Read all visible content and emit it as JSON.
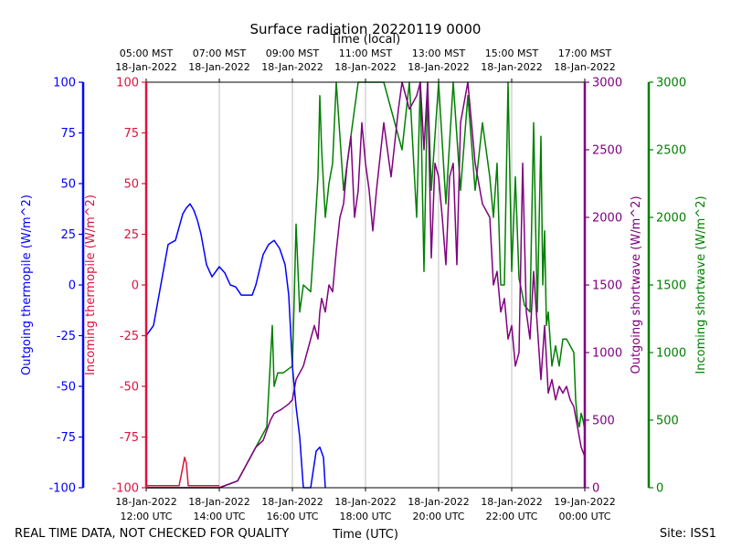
{
  "chart_data": {
    "type": "line",
    "title": "Surface radiation 20220119 0000",
    "top_axis_label": "Time (local)",
    "bottom_axis_label": "Time (UTC)",
    "footer_left": "REAL TIME DATA, NOT CHECKED FOR QUALITY",
    "footer_right": "Site: ISS1",
    "x_range_utc_hours": [
      12,
      24
    ],
    "grid": "vertical",
    "x_ticks_bottom": [
      {
        "h": 12,
        "l1": "18-Jan-2022",
        "l2": "12:00 UTC"
      },
      {
        "h": 14,
        "l1": "18-Jan-2022",
        "l2": "14:00 UTC"
      },
      {
        "h": 16,
        "l1": "18-Jan-2022",
        "l2": "16:00 UTC"
      },
      {
        "h": 18,
        "l1": "18-Jan-2022",
        "l2": "18:00 UTC"
      },
      {
        "h": 20,
        "l1": "18-Jan-2022",
        "l2": "20:00 UTC"
      },
      {
        "h": 22,
        "l1": "18-Jan-2022",
        "l2": "22:00 UTC"
      },
      {
        "h": 24,
        "l1": "19-Jan-2022",
        "l2": "00:00 UTC"
      }
    ],
    "x_ticks_top": [
      {
        "h": 12,
        "l1": "05:00 MST",
        "l2": "18-Jan-2022"
      },
      {
        "h": 14,
        "l1": "07:00 MST",
        "l2": "18-Jan-2022"
      },
      {
        "h": 16,
        "l1": "09:00 MST",
        "l2": "18-Jan-2022"
      },
      {
        "h": 18,
        "l1": "11:00 MST",
        "l2": "18-Jan-2022"
      },
      {
        "h": 20,
        "l1": "13:00 MST",
        "l2": "18-Jan-2022"
      },
      {
        "h": 22,
        "l1": "15:00 MST",
        "l2": "18-Jan-2022"
      },
      {
        "h": 24,
        "l1": "17:00 MST",
        "l2": "18-Jan-2022"
      }
    ],
    "axes": [
      {
        "key": "out_thermo",
        "label": "Outgoing thermopile (W/m^2)",
        "color": "#0000ff",
        "ylim": [
          -100,
          100
        ],
        "ticks": [
          -100,
          -75,
          -50,
          -25,
          0,
          25,
          50,
          75,
          100
        ]
      },
      {
        "key": "in_thermo",
        "label": "Incoming thermopile (W/m^2)",
        "color": "#dc143c",
        "ylim": [
          -100,
          100
        ],
        "ticks": [
          -100,
          -75,
          -50,
          -25,
          0,
          25,
          50,
          75,
          100
        ]
      },
      {
        "key": "out_sw",
        "label": "Outgoing shortwave (W/m^2)",
        "color": "#800080",
        "ylim": [
          0,
          3000
        ],
        "ticks": [
          0,
          500,
          1000,
          1500,
          2000,
          2500,
          3000
        ]
      },
      {
        "key": "in_sw",
        "label": "Incoming shortwave (W/m^2)",
        "color": "#008000",
        "ylim": [
          0,
          3000
        ],
        "ticks": [
          0,
          500,
          1000,
          1500,
          2000,
          2500,
          3000
        ]
      }
    ],
    "series": [
      {
        "axis": "in_sw",
        "color": "#008000",
        "points": [
          [
            12.0,
            0
          ],
          [
            13.0,
            0
          ],
          [
            14.0,
            0
          ],
          [
            14.5,
            50
          ],
          [
            15.0,
            300
          ],
          [
            15.3,
            450
          ],
          [
            15.45,
            1200
          ],
          [
            15.5,
            750
          ],
          [
            15.6,
            850
          ],
          [
            15.75,
            850
          ],
          [
            16.0,
            900
          ],
          [
            16.05,
            1400
          ],
          [
            16.1,
            1950
          ],
          [
            16.2,
            1300
          ],
          [
            16.3,
            1500
          ],
          [
            16.5,
            1450
          ],
          [
            16.6,
            1850
          ],
          [
            16.7,
            2300
          ],
          [
            16.75,
            2900
          ],
          [
            16.8,
            2500
          ],
          [
            16.9,
            2000
          ],
          [
            17.0,
            2250
          ],
          [
            17.1,
            2400
          ],
          [
            17.2,
            3000
          ],
          [
            17.4,
            2200
          ],
          [
            17.6,
            2600
          ],
          [
            17.8,
            3000
          ],
          [
            18.0,
            3000
          ],
          [
            18.5,
            3000
          ],
          [
            19.0,
            2500
          ],
          [
            19.2,
            3000
          ],
          [
            19.4,
            2000
          ],
          [
            19.5,
            3000
          ],
          [
            19.6,
            1600
          ],
          [
            19.7,
            3000
          ],
          [
            19.8,
            2200
          ],
          [
            20.0,
            3000
          ],
          [
            20.2,
            2100
          ],
          [
            20.4,
            3000
          ],
          [
            20.6,
            2200
          ],
          [
            20.8,
            2900
          ],
          [
            21.0,
            2200
          ],
          [
            21.2,
            2700
          ],
          [
            21.4,
            2300
          ],
          [
            21.5,
            2000
          ],
          [
            21.6,
            2400
          ],
          [
            21.7,
            1500
          ],
          [
            21.8,
            1500
          ],
          [
            21.9,
            3000
          ],
          [
            22.0,
            1600
          ],
          [
            22.1,
            2300
          ],
          [
            22.2,
            1550
          ],
          [
            22.35,
            1350
          ],
          [
            22.5,
            1300
          ],
          [
            22.6,
            2700
          ],
          [
            22.7,
            1300
          ],
          [
            22.8,
            2600
          ],
          [
            22.85,
            1500
          ],
          [
            22.9,
            1900
          ],
          [
            22.95,
            1200
          ],
          [
            23.0,
            1300
          ],
          [
            23.1,
            900
          ],
          [
            23.2,
            1050
          ],
          [
            23.3,
            900
          ],
          [
            23.4,
            1100
          ],
          [
            23.5,
            1100
          ],
          [
            23.7,
            1000
          ],
          [
            23.75,
            650
          ],
          [
            23.8,
            500
          ],
          [
            23.85,
            450
          ],
          [
            23.9,
            550
          ],
          [
            23.95,
            500
          ],
          [
            24.0,
            430
          ]
        ]
      },
      {
        "axis": "out_sw",
        "color": "#800080",
        "points": [
          [
            12.0,
            0
          ],
          [
            14.0,
            0
          ],
          [
            14.5,
            50
          ],
          [
            14.8,
            200
          ],
          [
            15.0,
            300
          ],
          [
            15.2,
            350
          ],
          [
            15.4,
            500
          ],
          [
            15.5,
            550
          ],
          [
            15.7,
            580
          ],
          [
            15.9,
            620
          ],
          [
            16.0,
            650
          ],
          [
            16.1,
            800
          ],
          [
            16.3,
            900
          ],
          [
            16.4,
            1000
          ],
          [
            16.5,
            1100
          ],
          [
            16.6,
            1200
          ],
          [
            16.7,
            1100
          ],
          [
            16.75,
            1300
          ],
          [
            16.8,
            1400
          ],
          [
            16.9,
            1300
          ],
          [
            17.0,
            1500
          ],
          [
            17.1,
            1450
          ],
          [
            17.2,
            1750
          ],
          [
            17.3,
            2000
          ],
          [
            17.4,
            2100
          ],
          [
            17.5,
            2400
          ],
          [
            17.6,
            2600
          ],
          [
            17.7,
            2000
          ],
          [
            17.8,
            2200
          ],
          [
            17.9,
            2700
          ],
          [
            18.0,
            2400
          ],
          [
            18.1,
            2200
          ],
          [
            18.2,
            1900
          ],
          [
            18.3,
            2200
          ],
          [
            18.5,
            2700
          ],
          [
            18.7,
            2300
          ],
          [
            18.9,
            2800
          ],
          [
            19.0,
            3000
          ],
          [
            19.2,
            2800
          ],
          [
            19.4,
            2900
          ],
          [
            19.5,
            3000
          ],
          [
            19.6,
            2500
          ],
          [
            19.7,
            3000
          ],
          [
            19.8,
            1700
          ],
          [
            19.9,
            2400
          ],
          [
            20.0,
            2300
          ],
          [
            20.1,
            2000
          ],
          [
            20.2,
            1650
          ],
          [
            20.3,
            2300
          ],
          [
            20.4,
            2400
          ],
          [
            20.5,
            1650
          ],
          [
            20.6,
            2700
          ],
          [
            20.8,
            3000
          ],
          [
            21.0,
            2400
          ],
          [
            21.2,
            2100
          ],
          [
            21.4,
            2000
          ],
          [
            21.5,
            1500
          ],
          [
            21.6,
            1600
          ],
          [
            21.7,
            1300
          ],
          [
            21.8,
            1400
          ],
          [
            21.9,
            1100
          ],
          [
            22.0,
            1200
          ],
          [
            22.1,
            900
          ],
          [
            22.2,
            1000
          ],
          [
            22.3,
            2400
          ],
          [
            22.4,
            1300
          ],
          [
            22.5,
            1100
          ],
          [
            22.6,
            1600
          ],
          [
            22.7,
            1200
          ],
          [
            22.8,
            800
          ],
          [
            22.9,
            1200
          ],
          [
            23.0,
            700
          ],
          [
            23.1,
            800
          ],
          [
            23.2,
            650
          ],
          [
            23.3,
            750
          ],
          [
            23.4,
            700
          ],
          [
            23.5,
            750
          ],
          [
            23.6,
            650
          ],
          [
            23.7,
            600
          ],
          [
            23.8,
            450
          ],
          [
            23.9,
            300
          ],
          [
            24.0,
            230
          ]
        ]
      },
      {
        "axis": "out_thermo",
        "color": "#0000ff",
        "points": [
          [
            12.0,
            -25
          ],
          [
            12.2,
            -20
          ],
          [
            12.35,
            -5
          ],
          [
            12.5,
            10
          ],
          [
            12.6,
            20
          ],
          [
            12.8,
            22
          ],
          [
            13.0,
            35
          ],
          [
            13.1,
            38
          ],
          [
            13.2,
            40
          ],
          [
            13.3,
            37
          ],
          [
            13.4,
            32
          ],
          [
            13.5,
            25
          ],
          [
            13.65,
            10
          ],
          [
            13.8,
            4
          ],
          [
            14.0,
            9
          ],
          [
            14.15,
            6
          ],
          [
            14.3,
            0
          ],
          [
            14.45,
            -1
          ],
          [
            14.6,
            -5
          ],
          [
            14.75,
            -5
          ],
          [
            14.9,
            -5
          ],
          [
            15.0,
            0
          ],
          [
            15.2,
            15
          ],
          [
            15.35,
            20
          ],
          [
            15.5,
            22
          ],
          [
            15.65,
            18
          ],
          [
            15.8,
            10
          ],
          [
            15.9,
            -5
          ],
          [
            16.0,
            -40
          ],
          [
            16.1,
            -60
          ],
          [
            16.2,
            -75
          ],
          [
            16.3,
            -100
          ],
          [
            16.5,
            -100
          ],
          [
            16.65,
            -82
          ],
          [
            16.75,
            -80
          ],
          [
            16.85,
            -85
          ],
          [
            16.9,
            -100
          ]
        ]
      },
      {
        "axis": "in_thermo",
        "color": "#dc143c",
        "points": [
          [
            12.0,
            -99
          ],
          [
            12.9,
            -99
          ],
          [
            13.0,
            -90
          ],
          [
            13.05,
            -85
          ],
          [
            13.1,
            -88
          ],
          [
            13.15,
            -99
          ],
          [
            14.0,
            -99
          ]
        ]
      }
    ]
  }
}
